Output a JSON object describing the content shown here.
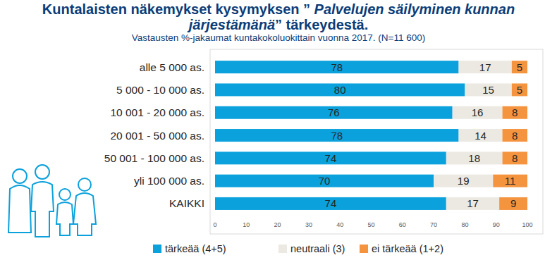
{
  "chart_data": {
    "type": "bar",
    "orientation": "horizontal",
    "stacked": true,
    "title": "Kuntalaisten näkemykset kysymyksen ” Palvelujen säilyminen kunnan järjestämänä” tärkeydestä.",
    "subtitle": "Vastausten %-jakaumat kuntakokoluokittain vuonna 2017. (N=11 600)",
    "categories": [
      "alle 5 000 as.",
      "5 000 - 10 000 as.",
      "10 001 - 20 000 as.",
      "20 001 - 50 000 as.",
      "50 001 - 100 000 as.",
      "yli 100 000 as.",
      "KAIKKI"
    ],
    "series": [
      {
        "name": "tärkeää (4+5)",
        "color": "#0aa1dc",
        "values": [
          78,
          80,
          76,
          78,
          74,
          70,
          74
        ]
      },
      {
        "name": "neutraali (3)",
        "color": "#ece9e2",
        "values": [
          17,
          15,
          16,
          14,
          18,
          19,
          17
        ]
      },
      {
        "name": "ei tärkeää (1+2)",
        "color": "#f5943f",
        "values": [
          5,
          5,
          8,
          8,
          8,
          11,
          9
        ]
      }
    ],
    "xlim": [
      0,
      100
    ],
    "xticks": [
      0,
      10,
      20,
      30,
      40,
      50,
      60,
      70,
      80,
      90,
      100
    ],
    "grid": false,
    "legend": "bottom",
    "data_labels": true
  }
}
